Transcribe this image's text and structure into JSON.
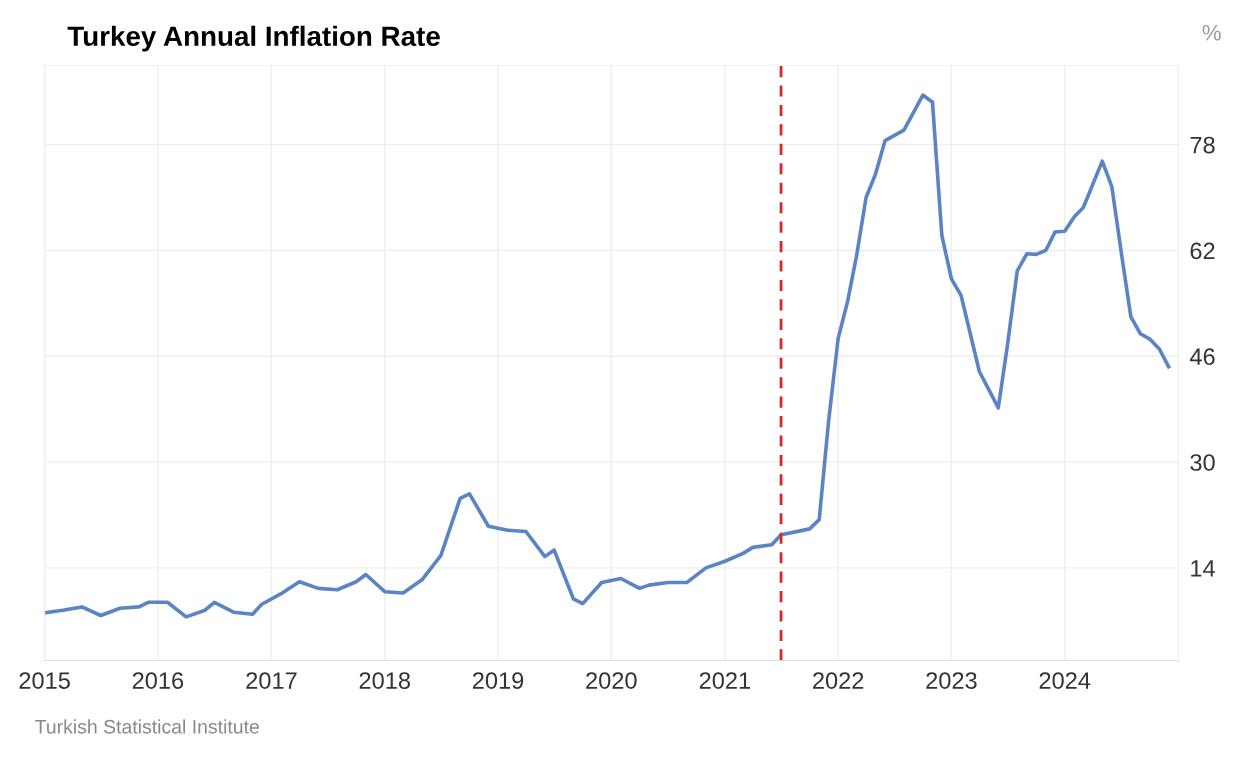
{
  "chart_data": {
    "type": "line",
    "title": "Turkey Annual Inflation Rate",
    "ylabel": "%",
    "x": [
      "2015-01",
      "2015-03",
      "2015-05",
      "2015-07",
      "2015-09",
      "2015-11",
      "2015-12",
      "2016-02",
      "2016-04",
      "2016-06",
      "2016-07",
      "2016-09",
      "2016-11",
      "2016-12",
      "2017-02",
      "2017-04",
      "2017-06",
      "2017-08",
      "2017-10",
      "2017-11",
      "2018-01",
      "2018-03",
      "2018-05",
      "2018-07",
      "2018-09",
      "2018-10",
      "2018-12",
      "2019-02",
      "2019-04",
      "2019-06",
      "2019-07",
      "2019-09",
      "2019-10",
      "2019-12",
      "2020-02",
      "2020-04",
      "2020-05",
      "2020-07",
      "2020-09",
      "2020-11",
      "2021-01",
      "2021-03",
      "2021-04",
      "2021-06",
      "2021-07",
      "2021-09",
      "2021-10",
      "2021-11",
      "2021-12",
      "2022-01",
      "2022-02",
      "2022-03",
      "2022-04",
      "2022-05",
      "2022-06",
      "2022-08",
      "2022-10",
      "2022-11",
      "2022-12",
      "2023-01",
      "2023-02",
      "2023-04",
      "2023-06",
      "2023-07",
      "2023-08",
      "2023-09",
      "2023-10",
      "2023-11",
      "2023-12",
      "2024-01",
      "2024-02",
      "2024-03",
      "2024-05",
      "2024-06",
      "2024-07",
      "2024-08",
      "2024-09",
      "2024-10",
      "2024-11",
      "2024-12"
    ],
    "series": [
      {
        "color": "#5b84c4",
        "values": [
          7.2,
          7.6,
          8.1,
          6.8,
          7.9,
          8.1,
          8.8,
          8.8,
          6.6,
          7.6,
          8.8,
          7.3,
          7.0,
          8.5,
          10.1,
          11.9,
          10.9,
          10.7,
          11.9,
          13.0,
          10.4,
          10.2,
          12.2,
          15.9,
          24.5,
          25.2,
          20.3,
          19.7,
          19.5,
          15.7,
          16.7,
          9.3,
          8.6,
          11.8,
          12.4,
          10.9,
          11.4,
          11.8,
          11.8,
          14.0,
          15.0,
          16.2,
          17.1,
          17.5,
          19.0,
          19.6,
          19.9,
          21.3,
          36.1,
          48.7,
          54.4,
          61.1,
          70.0,
          73.5,
          78.6,
          80.2,
          85.5,
          84.4,
          64.3,
          57.7,
          55.2,
          43.7,
          38.2,
          47.8,
          58.9,
          61.5,
          61.4,
          62.0,
          64.8,
          64.9,
          67.1,
          68.5,
          75.5,
          71.6,
          61.8,
          52.0,
          49.4,
          48.6,
          47.1,
          44.4
        ]
      }
    ],
    "xlim": [
      "2015-01",
      "2025-01"
    ],
    "ylim": [
      0,
      90
    ],
    "xticks": [
      "2015",
      "2016",
      "2017",
      "2018",
      "2019",
      "2020",
      "2021",
      "2022",
      "2023",
      "2024"
    ],
    "yticks": [
      14,
      30,
      46,
      62,
      78
    ],
    "ref_lines": [
      {
        "axis": "x",
        "value": "2021-07",
        "color": "#d62728",
        "line_style": "dashed"
      }
    ],
    "grid": true,
    "legend": false,
    "marker": "none",
    "line_style": "solid",
    "annotations": [
      "Turkish Statistical Institute"
    ]
  }
}
